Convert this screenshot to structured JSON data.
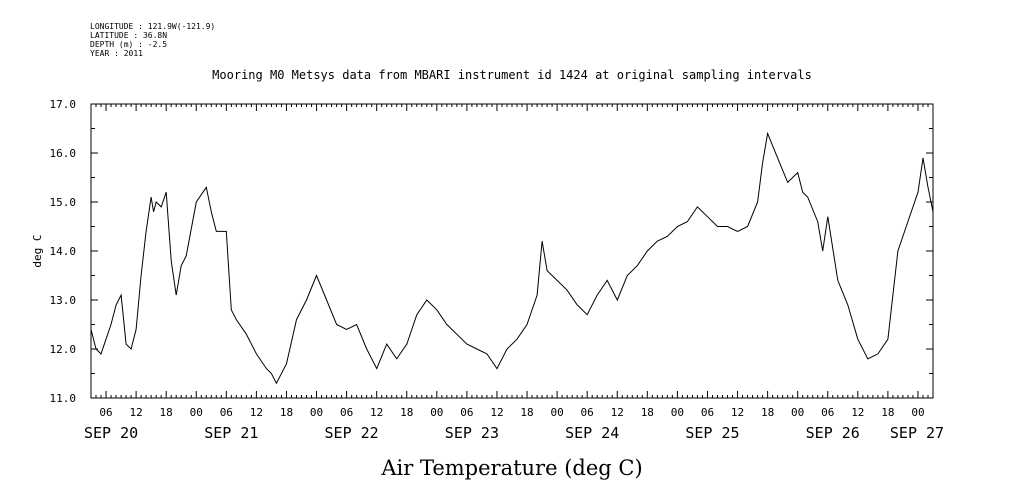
{
  "header": {
    "longitude": "LONGITUDE : 121.9W(-121.9)",
    "latitude": "LATITUDE : 36.8N",
    "depth": "DEPTH (m) : -2.5",
    "year": "YEAR : 2011"
  },
  "chart_data": {
    "type": "line",
    "title": "Mooring M0 Metsys data from MBARI instrument id 1424 at original sampling intervals",
    "xlabel": "Air Temperature (deg C)",
    "ylabel": "deg C",
    "ylim": [
      11.0,
      17.0
    ],
    "yticks": [
      "11.0",
      "12.0",
      "13.0",
      "14.0",
      "15.0",
      "16.0",
      "17.0"
    ],
    "xlim": [
      "2011-09-20T03:00",
      "2011-09-27T03:00"
    ],
    "hour_ticks": [
      "06",
      "12",
      "18",
      "00",
      "06",
      "12",
      "18",
      "00",
      "06",
      "12",
      "18",
      "00",
      "06",
      "12",
      "18",
      "00",
      "06",
      "12",
      "18",
      "00",
      "06",
      "12",
      "18",
      "00",
      "06",
      "12",
      "18",
      "00"
    ],
    "day_labels": [
      "SEP 20",
      "SEP 21",
      "SEP 22",
      "SEP 23",
      "SEP 24",
      "SEP 25",
      "SEP 26",
      "SEP 27"
    ],
    "grid": false,
    "series": [
      {
        "x": [
          "2011-09-20T03:00",
          "2011-09-20T04:00",
          "2011-09-20T05:00",
          "2011-09-20T06:00",
          "2011-09-20T07:00",
          "2011-09-20T08:00",
          "2011-09-20T09:00",
          "2011-09-20T09:30",
          "2011-09-20T10:00",
          "2011-09-20T11:00",
          "2011-09-20T12:00",
          "2011-09-20T13:00",
          "2011-09-20T14:00",
          "2011-09-20T15:00",
          "2011-09-20T15:30",
          "2011-09-20T16:00",
          "2011-09-20T17:00",
          "2011-09-20T18:00",
          "2011-09-20T19:00",
          "2011-09-20T20:00",
          "2011-09-20T21:00",
          "2011-09-20T22:00",
          "2011-09-21T00:00",
          "2011-09-21T02:00",
          "2011-09-21T03:00",
          "2011-09-21T04:00",
          "2011-09-21T06:00",
          "2011-09-21T06:30",
          "2011-09-21T07:00",
          "2011-09-21T08:00",
          "2011-09-21T10:00",
          "2011-09-21T12:00",
          "2011-09-21T14:00",
          "2011-09-21T15:00",
          "2011-09-21T16:00",
          "2011-09-21T18:00",
          "2011-09-21T20:00",
          "2011-09-21T22:00",
          "2011-09-22T00:00",
          "2011-09-22T02:00",
          "2011-09-22T04:00",
          "2011-09-22T06:00",
          "2011-09-22T08:00",
          "2011-09-22T10:00",
          "2011-09-22T12:00",
          "2011-09-22T14:00",
          "2011-09-22T16:00",
          "2011-09-22T18:00",
          "2011-09-22T20:00",
          "2011-09-22T22:00",
          "2011-09-23T00:00",
          "2011-09-23T02:00",
          "2011-09-23T04:00",
          "2011-09-23T06:00",
          "2011-09-23T08:00",
          "2011-09-23T10:00",
          "2011-09-23T12:00",
          "2011-09-23T14:00",
          "2011-09-23T16:00",
          "2011-09-23T18:00",
          "2011-09-23T20:00",
          "2011-09-23T21:00",
          "2011-09-23T22:00",
          "2011-09-24T00:00",
          "2011-09-24T02:00",
          "2011-09-24T04:00",
          "2011-09-24T06:00",
          "2011-09-24T08:00",
          "2011-09-24T10:00",
          "2011-09-24T12:00",
          "2011-09-24T14:00",
          "2011-09-24T16:00",
          "2011-09-24T18:00",
          "2011-09-24T20:00",
          "2011-09-24T22:00",
          "2011-09-25T00:00",
          "2011-09-25T02:00",
          "2011-09-25T04:00",
          "2011-09-25T06:00",
          "2011-09-25T08:00",
          "2011-09-25T10:00",
          "2011-09-25T12:00",
          "2011-09-25T14:00",
          "2011-09-25T16:00",
          "2011-09-25T17:00",
          "2011-09-25T18:00",
          "2011-09-25T20:00",
          "2011-09-25T22:00",
          "2011-09-26T00:00",
          "2011-09-26T01:00",
          "2011-09-26T02:00",
          "2011-09-26T04:00",
          "2011-09-26T05:00",
          "2011-09-26T06:00",
          "2011-09-26T08:00",
          "2011-09-26T10:00",
          "2011-09-26T12:00",
          "2011-09-26T14:00",
          "2011-09-26T16:00",
          "2011-09-26T18:00",
          "2011-09-26T19:00",
          "2011-09-26T20:00",
          "2011-09-26T22:00",
          "2011-09-27T00:00",
          "2011-09-27T01:00",
          "2011-09-27T02:00",
          "2011-09-27T03:00"
        ],
        "values": [
          12.4,
          12.0,
          11.9,
          12.2,
          12.5,
          12.9,
          13.1,
          12.6,
          12.1,
          12.0,
          12.4,
          13.5,
          14.4,
          15.1,
          14.8,
          15.0,
          14.9,
          15.2,
          13.8,
          13.1,
          13.7,
          13.9,
          15.0,
          15.3,
          14.8,
          14.4,
          14.4,
          13.6,
          12.8,
          12.6,
          12.3,
          11.9,
          11.6,
          11.5,
          11.3,
          11.7,
          12.6,
          13.0,
          13.5,
          13.0,
          12.5,
          12.4,
          12.5,
          12.0,
          11.6,
          12.1,
          11.8,
          12.1,
          12.7,
          13.0,
          12.8,
          12.5,
          12.3,
          12.1,
          12.0,
          11.9,
          11.6,
          12.0,
          12.2,
          12.5,
          13.1,
          14.2,
          13.6,
          13.4,
          13.2,
          12.9,
          12.7,
          13.1,
          13.4,
          13.0,
          13.5,
          13.7,
          14.0,
          14.2,
          14.3,
          14.5,
          14.6,
          14.9,
          14.7,
          14.5,
          14.5,
          14.4,
          14.5,
          15.0,
          15.8,
          16.4,
          15.9,
          15.4,
          15.6,
          15.2,
          15.1,
          14.6,
          14.0,
          14.7,
          13.4,
          12.9,
          12.2,
          11.8,
          11.9,
          12.2,
          13.1,
          14.0,
          14.6,
          15.2,
          15.9,
          15.3,
          14.8
        ]
      }
    ]
  }
}
